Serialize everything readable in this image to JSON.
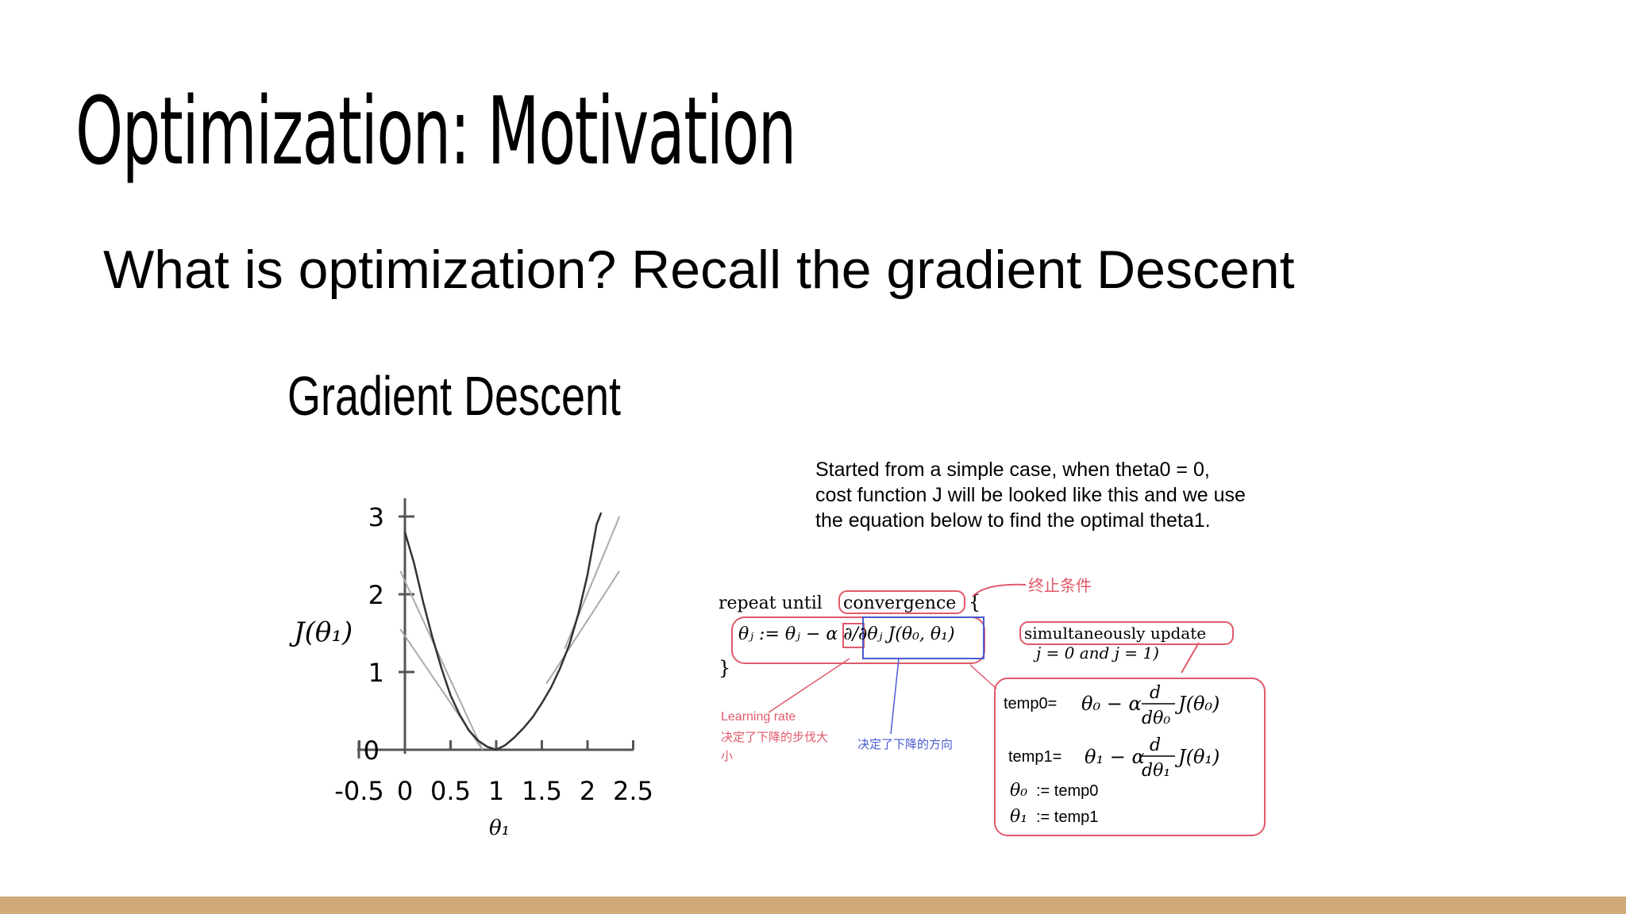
{
  "slide": {
    "title": "Optimization: Motivation",
    "subtitle": "What is optimization? Recall the gradient Descent",
    "accent_bar_color": "#d0aa78"
  },
  "figure": {
    "heading": "Gradient Descent",
    "description_lines": [
      "Started from a simple case, when theta0 = 0,",
      "cost function J will be looked like this and we use",
      "the equation below to find the optimal theta1."
    ],
    "annotations": {
      "stop_condition": "终止条件",
      "learning_rate": "Learning rate",
      "learning_rate_note_1": "决定了下降的步伐大",
      "learning_rate_note_2": "小",
      "direction_note": "决定了下降的方向"
    },
    "equations": {
      "repeat_prefix": "repeat until",
      "convergence": "convergence",
      "open_brace": "{",
      "close_brace": "}",
      "update_rule": "θⱼ := θⱼ − α ∂/∂θⱼ J(θ₀, θ₁)",
      "simultaneous": "simultaneously update",
      "j_values": "j = 0 and j = 1)",
      "temp0_label": "temp0=",
      "temp1_label": "temp1=",
      "theta0_assign": ":= temp0",
      "theta1_assign": ":= temp1"
    }
  },
  "chart_data": {
    "type": "line",
    "xlabel": "θ₁",
    "ylabel": "J(θ₁)",
    "x_ticks": [
      "-0.5",
      "0",
      "0.5",
      "1",
      "1.5",
      "2",
      "2.5"
    ],
    "y_ticks": [
      "0",
      "1",
      "2",
      "3"
    ],
    "xlim": [
      -0.5,
      2.5
    ],
    "ylim": [
      0,
      3
    ],
    "series": [
      {
        "x": [
          0,
          0.1,
          0.2,
          0.3,
          0.4,
          0.5,
          0.6,
          0.7,
          0.8,
          0.9,
          1.0,
          1.1,
          1.2,
          1.3,
          1.4,
          1.5,
          1.6,
          1.7,
          1.8,
          1.9,
          2.0,
          2.1,
          2.15
        ],
        "y": [
          2.8,
          2.4,
          1.9,
          1.45,
          1.05,
          0.7,
          0.45,
          0.25,
          0.12,
          0.04,
          0.0,
          0.06,
          0.16,
          0.28,
          0.42,
          0.6,
          0.8,
          1.05,
          1.35,
          1.75,
          2.25,
          2.9,
          3.05
        ]
      }
    ],
    "tangent_lines": [
      {
        "x": [
          -0.05,
          0.85
        ],
        "y": [
          2.3,
          0.0
        ]
      },
      {
        "x": [
          -0.05,
          0.85
        ],
        "y": [
          1.55,
          0.0
        ]
      },
      {
        "x": [
          1.55,
          2.35
        ],
        "y": [
          0.85,
          2.3
        ]
      },
      {
        "x": [
          1.75,
          2.35
        ],
        "y": [
          1.3,
          3.0
        ]
      }
    ]
  }
}
